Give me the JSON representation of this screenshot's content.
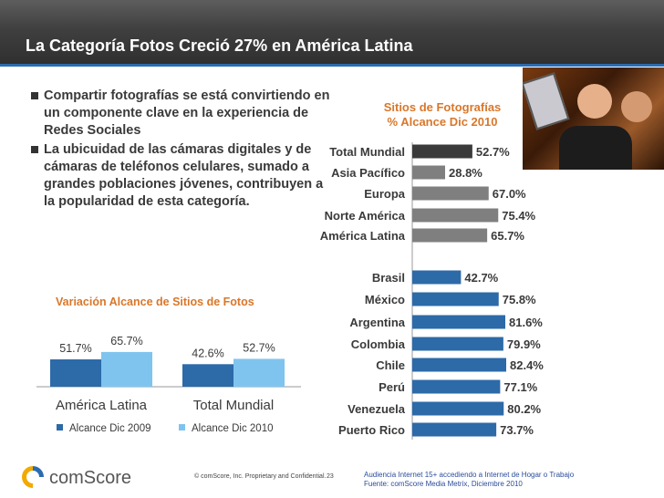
{
  "title": "La Categoría Fotos Creció 27% en América Latina",
  "bullets": [
    "Compartir fotografías se está convirtiendo en un componente clave en la experiencia de Redes Sociales",
    "La ubicuidad de las cámaras digitales y de cámaras de teléfonos celulares, sumado a grandes poblaciones jóvenes, contribuyen a la popularidad de esta categoría."
  ],
  "colors": {
    "title_bar": "#3f3f3f",
    "accent_blue": "#2b6cb0",
    "orange": "#d9772a",
    "bar_dark": "#3a3a3a",
    "bar_gray": "#7f7f7f",
    "bar_blue": "#2d6aa8",
    "bar_light_blue": "#7fc4ee"
  },
  "chart_data": [
    {
      "type": "bar",
      "orientation": "horizontal",
      "title": "Sitios de Fotografías",
      "subtitle": "% Alcance Dic 2010",
      "categories": [
        "Total Mundial",
        "Asia Pacífico",
        "Europa",
        "Norte América",
        "América Latina",
        "Brasil",
        "México",
        "Argentina",
        "Colombia",
        "Chile",
        "Perú",
        "Venezuela",
        "Puerto Rico"
      ],
      "values": [
        52.7,
        28.8,
        67.0,
        75.4,
        65.7,
        42.7,
        75.8,
        81.6,
        79.9,
        82.4,
        77.1,
        80.2,
        73.7
      ],
      "labels": [
        "52.7%",
        "28.8%",
        "67.0%",
        "75.4%",
        "65.7%",
        "42.7%",
        "75.8%",
        "81.6%",
        "79.9%",
        "82.4%",
        "77.1%",
        "80.2%",
        "73.7%"
      ],
      "xlim": [
        0,
        100
      ]
    },
    {
      "type": "bar",
      "title": "Variación Alcance de Sitios de Fotos",
      "categories": [
        "América Latina",
        "Total Mundial"
      ],
      "series": [
        {
          "name": "Alcance Dic 2009",
          "values": [
            51.7,
            42.6
          ],
          "labels": [
            "51.7%",
            "42.6%"
          ]
        },
        {
          "name": "Alcance Dic 2010",
          "values": [
            65.7,
            52.7
          ],
          "labels": [
            "65.7%",
            "52.7%"
          ]
        }
      ],
      "ylim": [
        0,
        100
      ]
    }
  ],
  "footer": {
    "logo_text": "comScore",
    "copyright": "© comScore, Inc.  Proprietary and Confidential.",
    "page": "23",
    "note_line1": "Audiencia Internet 15+  accediendo a Internet de Hogar o Trabajo",
    "note_line2": "Fuente:  comScore Media Metrix, Diciembre 2010"
  }
}
